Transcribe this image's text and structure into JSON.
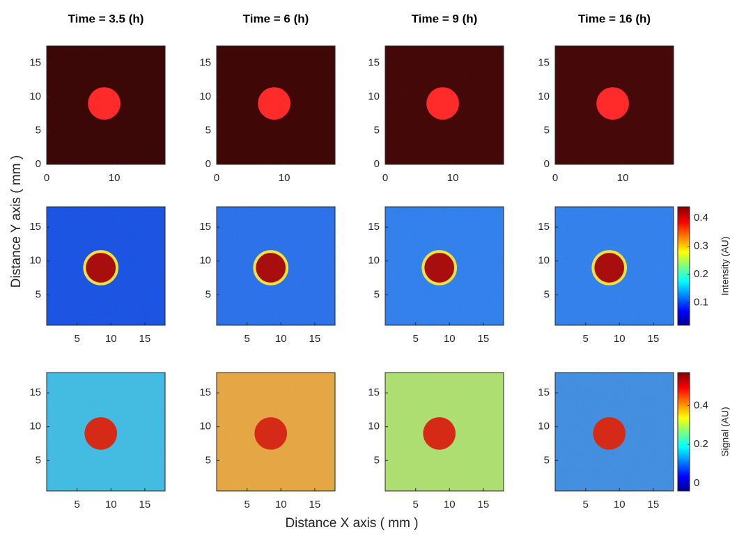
{
  "chart_data": {
    "type": "image-grid",
    "column_titles": [
      "Time = 3.5 (h)",
      "Time = 6 (h)",
      "Time = 9 (h)",
      "Time = 16 (h)"
    ],
    "xlabel": "Distance X axis ( mm )",
    "ylabel": "Distance Y axis ( mm )",
    "rows": [
      {
        "xlim": [
          0,
          17.5
        ],
        "ylim": [
          0,
          17.5
        ],
        "xticks": [
          0,
          10
        ],
        "yticks": [
          0,
          5,
          10,
          15
        ],
        "colors": [
          "#3a0606",
          "#3e0606",
          "#420707",
          "#440808"
        ],
        "spot_color": "#ff2a2a"
      },
      {
        "xlim": [
          0.5,
          18
        ],
        "ylim": [
          0.5,
          18
        ],
        "xticks": [
          5,
          10,
          15
        ],
        "yticks": [
          5,
          10,
          15
        ],
        "colors": [
          "#1a4fe0",
          "#2a6ae8",
          "#2f78ea",
          "#3079ea"
        ],
        "spot_color": "#a80e0e",
        "colorbar": {
          "label": "Intensity (AU)",
          "lim": [
            0.02,
            0.44
          ],
          "ticks": [
            0.1,
            0.2,
            0.3,
            0.4
          ]
        }
      },
      {
        "xlim": [
          0.5,
          18
        ],
        "ylim": [
          0.5,
          18
        ],
        "xticks": [
          5,
          10,
          15
        ],
        "yticks": [
          5,
          10,
          15
        ],
        "colors": [
          "#3fb6e0",
          "#e4a040",
          "#a8dc6a",
          "#3f86dc"
        ],
        "spot_color": "#d42a16",
        "colorbar": {
          "label": "Signal (AU)",
          "lim": [
            -0.04,
            0.57
          ],
          "ticks": [
            0,
            0.2,
            0.4
          ]
        }
      }
    ]
  }
}
